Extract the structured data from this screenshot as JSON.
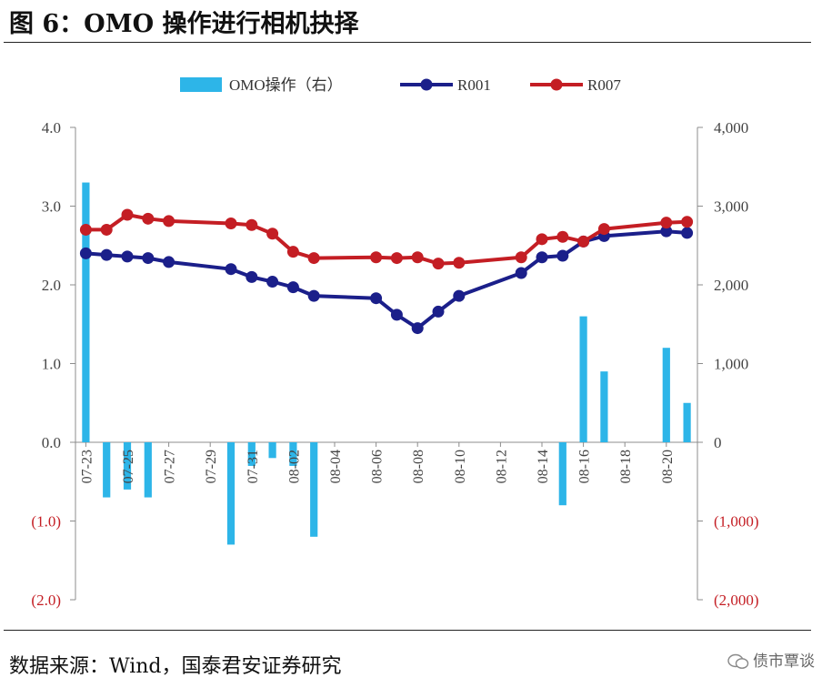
{
  "figure_title": "图  6：OMO 操作进行相机抉择",
  "source": "数据来源：Wind，国泰君安证券研究",
  "watermark": "债市覃谈",
  "colors": {
    "omo": "#2db5e8",
    "r001": "#1b1f8a",
    "r007": "#c41e24",
    "neg_label": "#c41e24",
    "axis": "#8c8c8c",
    "text": "#444444"
  },
  "chart_data": {
    "type": "bar+line",
    "title": "",
    "legend_position": "top",
    "grid": false,
    "left_axis": {
      "min": -2.0,
      "max": 4.0,
      "ticks": [
        -2.0,
        -1.0,
        0.0,
        1.0,
        2.0,
        3.0,
        4.0
      ],
      "tick_labels": [
        "(2.0)",
        "(1.0)",
        "0.0",
        "1.0",
        "2.0",
        "3.0",
        "4.0"
      ]
    },
    "right_axis": {
      "min": -2000,
      "max": 4000,
      "ticks": [
        -2000,
        -1000,
        0,
        1000,
        2000,
        3000,
        4000
      ],
      "tick_labels": [
        "(2,000)",
        "(1,000)",
        "0",
        "1,000",
        "2,000",
        "3,000",
        "4,000"
      ]
    },
    "x_ticks": [
      {
        "i": 0,
        "label": "07-23"
      },
      {
        "i": 2,
        "label": "07-25"
      },
      {
        "i": 4,
        "label": "07-27"
      },
      {
        "i": 6,
        "label": "07-29"
      },
      {
        "i": 8,
        "label": "07-31"
      },
      {
        "i": 10,
        "label": "08-02"
      },
      {
        "i": 12,
        "label": "08-04"
      },
      {
        "i": 14,
        "label": "08-06"
      },
      {
        "i": 16,
        "label": "08-08"
      },
      {
        "i": 18,
        "label": "08-10"
      },
      {
        "i": 20,
        "label": "08-12"
      },
      {
        "i": 22,
        "label": "08-14"
      },
      {
        "i": 24,
        "label": "08-16"
      },
      {
        "i": 26,
        "label": "08-18"
      },
      {
        "i": 28,
        "label": "08-20"
      }
    ],
    "n_slots": 30,
    "series": [
      {
        "name": "OMO操作（右）",
        "kind": "bar",
        "axis": "right",
        "points": [
          [
            0,
            3300
          ],
          [
            1,
            -700
          ],
          [
            2,
            -600
          ],
          [
            3,
            -700
          ],
          [
            7,
            -1300
          ],
          [
            8,
            -300
          ],
          [
            9,
            -200
          ],
          [
            10,
            -300
          ],
          [
            11,
            -1200
          ],
          [
            23,
            -800
          ],
          [
            24,
            1600
          ],
          [
            25,
            900
          ],
          [
            28,
            1200
          ],
          [
            29,
            500
          ]
        ]
      },
      {
        "name": "R001",
        "kind": "line",
        "axis": "left",
        "points": [
          [
            0,
            2.4
          ],
          [
            1,
            2.38
          ],
          [
            2,
            2.36
          ],
          [
            3,
            2.34
          ],
          [
            4,
            2.29
          ],
          [
            7,
            2.2
          ],
          [
            8,
            2.1
          ],
          [
            9,
            2.04
          ],
          [
            10,
            1.97
          ],
          [
            11,
            1.86
          ],
          [
            14,
            1.83
          ],
          [
            15,
            1.62
          ],
          [
            16,
            1.45
          ],
          [
            17,
            1.66
          ],
          [
            18,
            1.86
          ],
          [
            21,
            2.15
          ],
          [
            22,
            2.35
          ],
          [
            23,
            2.37
          ],
          [
            24,
            2.55
          ],
          [
            25,
            2.62
          ],
          [
            28,
            2.68
          ],
          [
            29,
            2.66
          ]
        ]
      },
      {
        "name": "R007",
        "kind": "line",
        "axis": "left",
        "points": [
          [
            0,
            2.7
          ],
          [
            1,
            2.7
          ],
          [
            2,
            2.89
          ],
          [
            3,
            2.84
          ],
          [
            4,
            2.81
          ],
          [
            7,
            2.78
          ],
          [
            8,
            2.76
          ],
          [
            9,
            2.65
          ],
          [
            10,
            2.42
          ],
          [
            11,
            2.34
          ],
          [
            14,
            2.35
          ],
          [
            15,
            2.34
          ],
          [
            16,
            2.35
          ],
          [
            17,
            2.27
          ],
          [
            18,
            2.28
          ],
          [
            21,
            2.35
          ],
          [
            22,
            2.58
          ],
          [
            23,
            2.61
          ],
          [
            24,
            2.55
          ],
          [
            25,
            2.71
          ],
          [
            28,
            2.79
          ],
          [
            29,
            2.8
          ]
        ]
      }
    ]
  }
}
